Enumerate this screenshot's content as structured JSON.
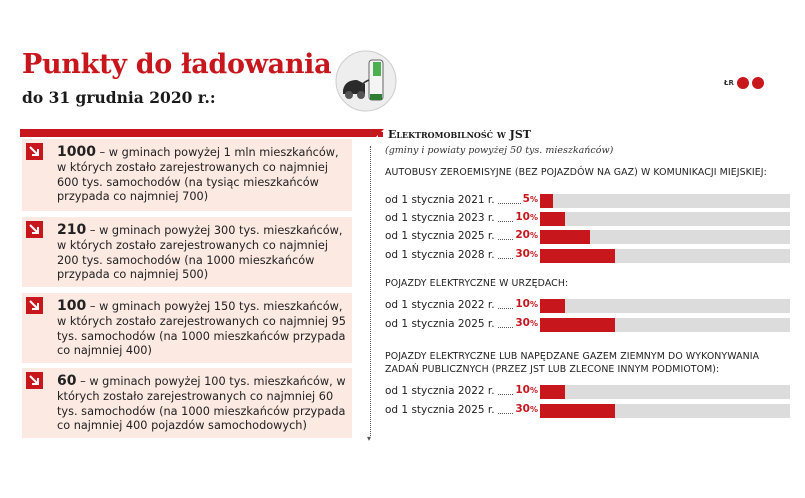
{
  "header": {
    "title": "Punkty do ładowania",
    "subtitle": "do 31 grudnia 2020 r.:",
    "logo_text": "ŁR"
  },
  "cards": [
    {
      "value": "1000",
      "text": " – w gminach powyżej 1 mln mieszkańców, w których zostało zarejestrowanych co najmniej 600 tys. samochodów (na tysiąc mieszkańców przypada co najmniej 700)"
    },
    {
      "value": "210",
      "text": " – w gminach powyżej 300 tys. mieszkańców, w których zostało zarejestrowanych co najmniej 200 tys. samochodów (na 1000 mieszkańców przypada co najmniej 500)"
    },
    {
      "value": "100",
      "text": " – w gminach powyżej 150 tys. mieszkańców, w których zostało zarejestrowanych co najmniej 95 tys. samochodów (na 1000 mieszkańców przypada co najmniej 400)"
    },
    {
      "value": "60",
      "text": " – w gminach powyżej 100 tys. mieszkańców, w których zostało zarejestrowanych co najmniej 60 tys. samochodów (na 1000 mieszkańców przypada co najmniej 400 pojazdów samochodowych)"
    }
  ],
  "colors": {
    "accent": "#c8161d",
    "card_bg": "#fbe9e2",
    "track": "#dcdcdc"
  },
  "chart_data": {
    "type": "bar",
    "title": "Elektromobilność w JST",
    "subtitle": "(gminy i powiaty powyżej 50 tys. mieszkańców)",
    "xlim": [
      0,
      100
    ],
    "unit": "%",
    "groups": [
      {
        "name": "AUTOBUSY ZEROEMISYJNE (BEZ POJAZDÓW NA GAZ) W KOMUNIKACJI MIEJSKIEJ:",
        "categories": [
          "od 1 stycznia 2021 r.",
          "od 1 stycznia 2023 r.",
          "od 1 stycznia 2025 r.",
          "od 1 stycznia 2028 r."
        ],
        "values": [
          5,
          10,
          20,
          30
        ]
      },
      {
        "name": "POJAZDY ELEKTRYCZNE W URZĘDACH:",
        "categories": [
          "od 1 stycznia 2022 r.",
          "od 1 stycznia 2025 r."
        ],
        "values": [
          10,
          30
        ]
      },
      {
        "name": "POJAZDY ELEKTRYCZNE LUB NAPĘDZANE GAZEM ZIEMNYM DO WYKONYWANIA ZADAŃ PUBLICZNYCH (PRZEZ JST LUB ZLECONE INNYM PODMIOTOM):",
        "categories": [
          "od 1 stycznia 2022 r.",
          "od 1 stycznia 2025 r."
        ],
        "values": [
          10,
          30
        ]
      }
    ]
  }
}
